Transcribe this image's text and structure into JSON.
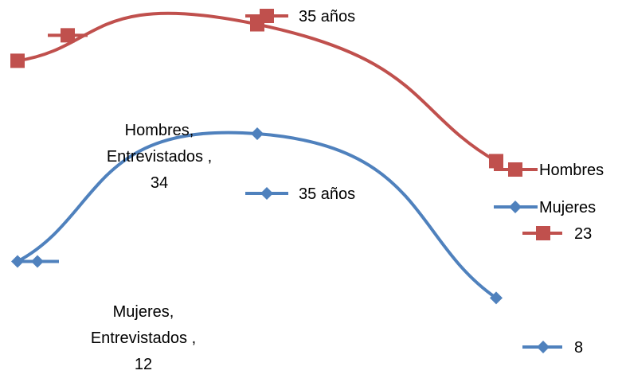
{
  "chart_data": {
    "type": "line",
    "categories": [
      "Entrevistados",
      "35 años",
      ""
    ],
    "series": [
      {
        "name": "Hombres",
        "values": [
          34,
          38,
          23
        ],
        "color": "#c0504d",
        "marker": "square",
        "point_labels": [
          "Hombres,\nEntrevistados ,\n34",
          "35 años",
          "23"
        ]
      },
      {
        "name": "Mujeres",
        "values": [
          12,
          26,
          8
        ],
        "color": "#4f81bd",
        "marker": "diamond",
        "point_labels": [
          "Mujeres,\nEntrevistados ,\n12",
          "35 años",
          "8"
        ]
      }
    ],
    "title": "",
    "xlabel": "",
    "ylabel": "",
    "grid": false,
    "axes_visible": false,
    "smooth": true,
    "legend": {
      "position": "right",
      "entries": [
        "Hombres",
        "Mujeres"
      ]
    }
  }
}
